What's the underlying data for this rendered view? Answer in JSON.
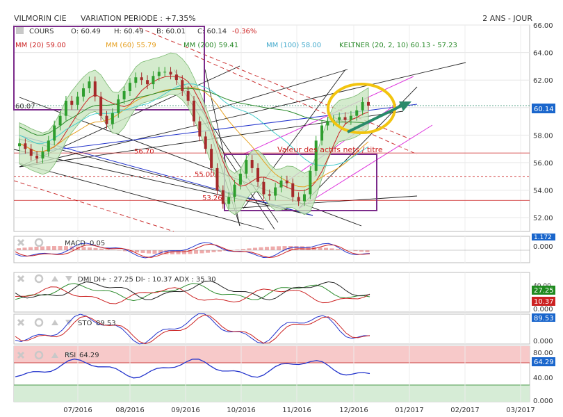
{
  "header": {
    "symbol": "VILMORIN CIE",
    "variation": "VARIATION PERIODE : +7.35%",
    "period": "2 ANS - JOUR"
  },
  "legend": {
    "cours": "COURS",
    "open": "O: 60.49",
    "high": "H: 60.49",
    "low": "B: 60.01",
    "close": "C: 60.14",
    "change": "-0.36%",
    "mm20": "MM (20) 59.00",
    "mm60": "MM (60) 55.79",
    "mm200": "MM (200) 59.41",
    "mm100": "MM (100) 58.00",
    "keltner": "KELTNER (20, 2, 10) 60.13 - 57.23"
  },
  "annotations": {
    "actifs": "Valeur des actifs nets / titre",
    "level_5670": "56.70",
    "level_5500": "55.00",
    "level_5326": "53.26",
    "level_6007": "60.07",
    "price_tag": "60.14"
  },
  "colors": {
    "up": "#2e9e2e",
    "down": "#a52a2a",
    "mm20": "#cc2222",
    "mm60": "#e6a020",
    "mm200": "#2a8a2a",
    "mm100": "#44cccc",
    "keltner_fill": "#c9e6c0",
    "purple": "#7b2a8a",
    "circle": "#f2c40f",
    "arrow": "#2a8a6a",
    "tag_bg": "#1a66cc"
  },
  "panels": {
    "macd": {
      "label": "MACD",
      "value": "0.05",
      "axis": [
        "1.172",
        "0.000"
      ]
    },
    "dmi": {
      "label": "DMI DI+ : 27.25 DI- : 10.37 ADX : 35.30",
      "axis": [
        "40.00",
        "0.000"
      ],
      "tags": [
        "27.25",
        "10.37"
      ]
    },
    "sto": {
      "label": "STO",
      "value": "89.53",
      "axis": [
        "89.53",
        "0.000"
      ]
    },
    "rsi": {
      "label": "RSI",
      "value": "64.29",
      "axis": [
        "80.00",
        "64.29",
        "40.00",
        "0.000"
      ]
    }
  },
  "chart_data": {
    "type": "candlestick",
    "ylim": [
      51,
      66
    ],
    "y_ticks": [
      "66.00",
      "64.00",
      "62.00",
      "60.00",
      "58.00",
      "56.00",
      "54.00",
      "52.00"
    ],
    "x_ticks": [
      "07/2016",
      "08/2016",
      "09/2016",
      "10/2016",
      "11/2016",
      "12/2016",
      "01/2017",
      "02/2017",
      "03/2017"
    ],
    "close": [
      57.4,
      57.0,
      56.5,
      56.3,
      56.8,
      57.6,
      58.7,
      59.4,
      60.5,
      60.2,
      60.8,
      61.4,
      61.9,
      60.8,
      59.4,
      58.8,
      59.6,
      60.6,
      61.2,
      61.8,
      62.2,
      62.0,
      61.7,
      62.3,
      62.6,
      62.6,
      62.4,
      62.0,
      61.2,
      60.5,
      59.0,
      57.9,
      57.0,
      55.6,
      54.0,
      53.0,
      53.5,
      54.4,
      55.2,
      56.2,
      55.6,
      54.6,
      53.7,
      53.6,
      54.2,
      54.7,
      54.5,
      53.5,
      53.2,
      53.7,
      55.4,
      57.6,
      58.7,
      59.0,
      59.1,
      59.3,
      59.1,
      59.4,
      59.8,
      60.4,
      60.14
    ]
  }
}
